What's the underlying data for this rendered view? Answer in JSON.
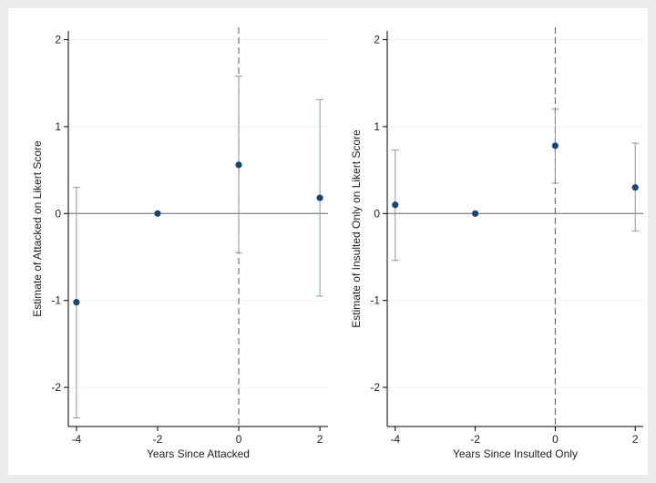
{
  "chart_data": [
    {
      "type": "scatter",
      "style": "coefficient-plot-with-confidence-intervals",
      "title": "",
      "xlabel": "Years Since Attacked",
      "ylabel": "Estimate of Attacked on Likert Score",
      "x_ticks": [
        -4,
        -2,
        0,
        2
      ],
      "y_ticks": [
        -2,
        -1,
        0,
        1,
        2
      ],
      "xlim": [
        -4.2,
        2.2
      ],
      "ylim": [
        -2.45,
        2.1
      ],
      "reference_line_y": 0,
      "reference_line_x": 0,
      "grid": true,
      "points": [
        {
          "x": -4,
          "y": -1.02,
          "ci_low": -2.35,
          "ci_high": 0.3
        },
        {
          "x": -2,
          "y": 0.0,
          "ci_low": null,
          "ci_high": null
        },
        {
          "x": 0,
          "y": 0.56,
          "ci_low": -0.45,
          "ci_high": 1.58
        },
        {
          "x": 2,
          "y": 0.18,
          "ci_low": -0.95,
          "ci_high": 1.31
        }
      ]
    },
    {
      "type": "scatter",
      "style": "coefficient-plot-with-confidence-intervals",
      "title": "",
      "xlabel": "Years Since Insulted Only",
      "ylabel": "Estimate of Insulted Only on Likert Score",
      "x_ticks": [
        -4,
        -2,
        0,
        2
      ],
      "y_ticks": [
        -2,
        -1,
        0,
        1,
        2
      ],
      "xlim": [
        -4.2,
        2.2
      ],
      "ylim": [
        -2.45,
        2.1
      ],
      "reference_line_y": 0,
      "reference_line_x": 0,
      "grid": true,
      "points": [
        {
          "x": -4,
          "y": 0.1,
          "ci_low": -0.54,
          "ci_high": 0.73
        },
        {
          "x": -2,
          "y": 0.0,
          "ci_low": null,
          "ci_high": null
        },
        {
          "x": 0,
          "y": 0.78,
          "ci_low": 0.35,
          "ci_high": 1.2
        },
        {
          "x": 2,
          "y": 0.3,
          "ci_low": -0.2,
          "ci_high": 0.81
        }
      ]
    }
  ],
  "colors": {
    "point": "#1a476f",
    "ci": "#8a9aa8",
    "zero_line": "#666666",
    "gridline": "#eaf2f3",
    "axis": "#000000"
  }
}
